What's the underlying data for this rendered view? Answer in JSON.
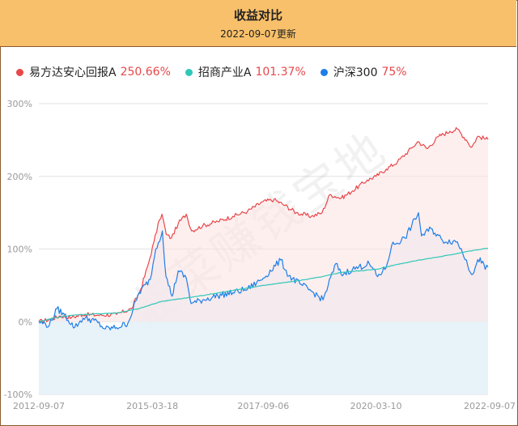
{
  "header": {
    "title": "收益对比",
    "date": "2022-09-07更新"
  },
  "watermark": "韭菜赚钱宝地",
  "colors": {
    "header_bg": "#f8c06a",
    "border": "#8a5a2b"
  },
  "chart_data": {
    "type": "line",
    "ylabel_format": "percent",
    "ylim": [
      -100,
      300
    ],
    "yticks": [
      "300%",
      "200%",
      "100%",
      "0%",
      "-100%"
    ],
    "ytick_values": [
      300,
      200,
      100,
      0,
      -100
    ],
    "xticks": [
      "2012-09-07",
      "2015-03-18",
      "2017-09-06",
      "2020-03-10",
      "2022-09-07"
    ],
    "xtick_dates": [
      "2012-09-07",
      "2015-03-18",
      "2017-09-06",
      "2020-03-10",
      "2022-09-07"
    ],
    "grid": true,
    "legend_position": "top-left",
    "series": [
      {
        "name": "易方达安心回报A",
        "final_return": "250.66%",
        "color": "#e8474a",
        "fill": "#fde4e4",
        "points": [
          [
            "2012-09-07",
            0
          ],
          [
            "2012-12-01",
            3
          ],
          [
            "2013-03-01",
            8
          ],
          [
            "2013-06-01",
            6
          ],
          [
            "2013-09-01",
            10
          ],
          [
            "2014-01-01",
            9
          ],
          [
            "2014-06-01",
            10
          ],
          [
            "2014-10-01",
            18
          ],
          [
            "2014-12-15",
            45
          ],
          [
            "2015-02-15",
            80
          ],
          [
            "2015-04-01",
            110
          ],
          [
            "2015-05-15",
            140
          ],
          [
            "2015-06-05",
            148
          ],
          [
            "2015-07-10",
            120
          ],
          [
            "2015-08-20",
            115
          ],
          [
            "2015-10-15",
            135
          ],
          [
            "2015-12-20",
            148
          ],
          [
            "2016-02-01",
            125
          ],
          [
            "2016-05-01",
            132
          ],
          [
            "2016-09-01",
            138
          ],
          [
            "2017-01-01",
            145
          ],
          [
            "2017-05-01",
            152
          ],
          [
            "2017-09-01",
            165
          ],
          [
            "2017-12-01",
            168
          ],
          [
            "2018-03-01",
            160
          ],
          [
            "2018-06-01",
            150
          ],
          [
            "2018-10-01",
            145
          ],
          [
            "2018-12-28",
            150
          ],
          [
            "2019-03-01",
            175
          ],
          [
            "2019-06-01",
            170
          ],
          [
            "2019-09-01",
            180
          ],
          [
            "2019-12-31",
            195
          ],
          [
            "2020-03-10",
            200
          ],
          [
            "2020-06-01",
            210
          ],
          [
            "2020-09-01",
            220
          ],
          [
            "2020-12-31",
            240
          ],
          [
            "2021-02-15",
            248
          ],
          [
            "2021-05-01",
            238
          ],
          [
            "2021-08-01",
            255
          ],
          [
            "2021-11-01",
            262
          ],
          [
            "2022-01-01",
            265
          ],
          [
            "2022-03-15",
            250
          ],
          [
            "2022-04-26",
            240
          ],
          [
            "2022-06-15",
            255
          ],
          [
            "2022-09-07",
            250.66
          ]
        ]
      },
      {
        "name": "招商产业A",
        "final_return": "101.37%",
        "color": "#2fc7b8",
        "fill": null,
        "points": [
          [
            "2012-09-07",
            0
          ],
          [
            "2013-01-01",
            5
          ],
          [
            "2013-06-01",
            9
          ],
          [
            "2014-01-01",
            11
          ],
          [
            "2014-06-01",
            12
          ],
          [
            "2014-12-01",
            18
          ],
          [
            "2015-06-01",
            28
          ],
          [
            "2016-01-01",
            33
          ],
          [
            "2016-06-01",
            37
          ],
          [
            "2017-01-01",
            43
          ],
          [
            "2017-09-06",
            50
          ],
          [
            "2018-06-01",
            56
          ],
          [
            "2019-01-01",
            62
          ],
          [
            "2019-06-01",
            68
          ],
          [
            "2020-03-10",
            72
          ],
          [
            "2020-09-01",
            79
          ],
          [
            "2021-03-01",
            85
          ],
          [
            "2021-09-01",
            90
          ],
          [
            "2022-03-01",
            96
          ],
          [
            "2022-09-07",
            101.37
          ]
        ]
      },
      {
        "name": "沪深300",
        "final_return": "75%",
        "color": "#1e7ee8",
        "fill": "#e6f1f8",
        "points": [
          [
            "2012-09-07",
            0
          ],
          [
            "2012-12-01",
            -5
          ],
          [
            "2013-02-01",
            18
          ],
          [
            "2013-04-01",
            10
          ],
          [
            "2013-06-25",
            -8
          ],
          [
            "2013-09-01",
            5
          ],
          [
            "2013-12-01",
            2
          ],
          [
            "2014-03-01",
            -10
          ],
          [
            "2014-06-01",
            -8
          ],
          [
            "2014-09-01",
            -2
          ],
          [
            "2014-12-01",
            40
          ],
          [
            "2015-03-01",
            58
          ],
          [
            "2015-04-15",
            100
          ],
          [
            "2015-06-08",
            125
          ],
          [
            "2015-07-08",
            62
          ],
          [
            "2015-08-26",
            35
          ],
          [
            "2015-10-15",
            70
          ],
          [
            "2015-12-20",
            60
          ],
          [
            "2016-01-28",
            25
          ],
          [
            "2016-05-01",
            30
          ],
          [
            "2016-09-01",
            36
          ],
          [
            "2017-01-01",
            40
          ],
          [
            "2017-05-01",
            45
          ],
          [
            "2017-09-06",
            60
          ],
          [
            "2018-01-26",
            85
          ],
          [
            "2018-04-01",
            63
          ],
          [
            "2018-07-01",
            52
          ],
          [
            "2018-10-20",
            40
          ],
          [
            "2019-01-04",
            30
          ],
          [
            "2019-04-19",
            80
          ],
          [
            "2019-06-01",
            65
          ],
          [
            "2019-09-01",
            72
          ],
          [
            "2020-01-15",
            80
          ],
          [
            "2020-03-23",
            62
          ],
          [
            "2020-06-01",
            75
          ],
          [
            "2020-07-15",
            105
          ],
          [
            "2020-11-01",
            115
          ],
          [
            "2021-02-18",
            150
          ],
          [
            "2021-03-15",
            118
          ],
          [
            "2021-06-01",
            128
          ],
          [
            "2021-09-01",
            112
          ],
          [
            "2021-12-31",
            110
          ],
          [
            "2022-03-15",
            85
          ],
          [
            "2022-04-26",
            65
          ],
          [
            "2022-07-05",
            88
          ],
          [
            "2022-08-15",
            72
          ],
          [
            "2022-09-07",
            75
          ]
        ]
      }
    ]
  }
}
